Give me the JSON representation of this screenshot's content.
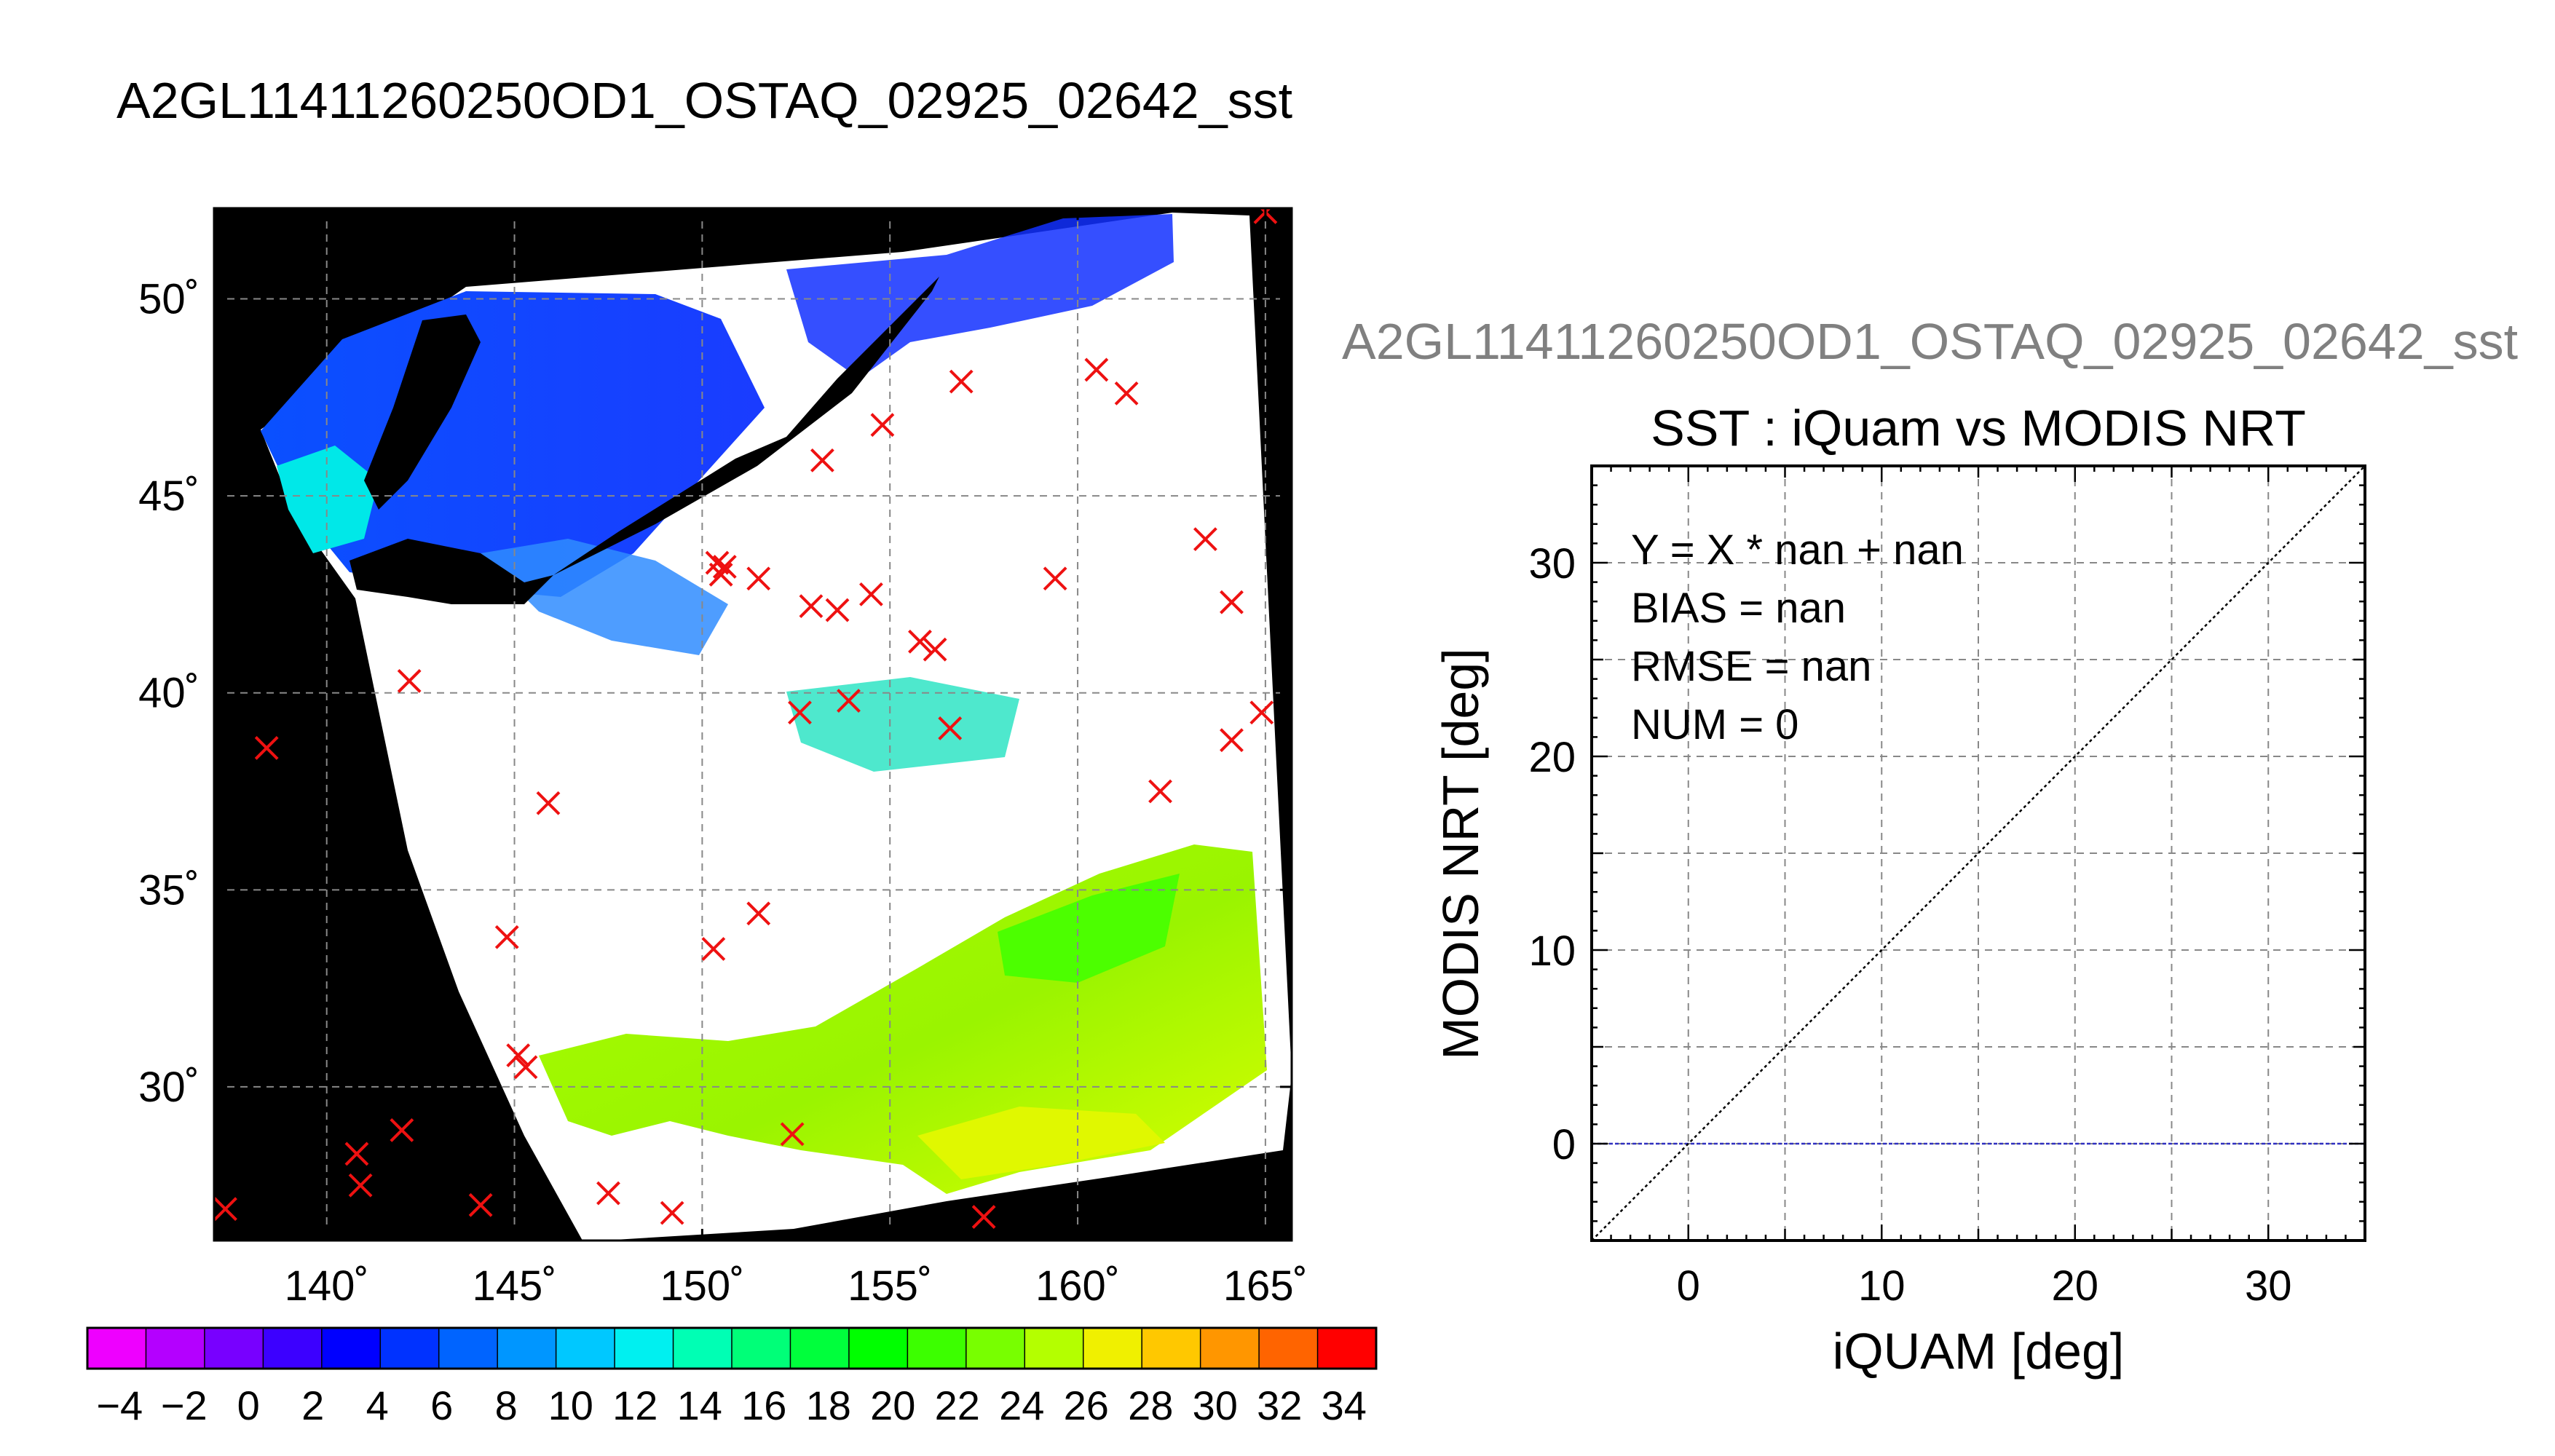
{
  "title": "A2GL11411260250OD1_OSTAQ_02925_02642_sst",
  "map": {
    "lon_ticks": [
      140,
      145,
      150,
      155,
      160,
      165
    ],
    "lat_ticks": [
      50,
      45,
      40,
      35,
      30
    ],
    "lon_labels": [
      "140˚",
      "145˚",
      "150˚",
      "155˚",
      "160˚",
      "165˚"
    ],
    "lat_labels": [
      "50˚",
      "45˚",
      "40˚",
      "35˚",
      "30˚"
    ],
    "lon_range": [
      137,
      165.7
    ],
    "lat_range": [
      26.1,
      52.3
    ],
    "marker_color": "#ee1111",
    "background_color": "#000000",
    "cloud_color": "#ffffff",
    "markers": [
      {
        "lon": 137.3,
        "lat": 26.9
      },
      {
        "lon": 138.4,
        "lat": 38.6
      },
      {
        "lon": 140.8,
        "lat": 28.3
      },
      {
        "lon": 140.9,
        "lat": 27.5
      },
      {
        "lon": 142.0,
        "lat": 28.9
      },
      {
        "lon": 142.2,
        "lat": 40.3
      },
      {
        "lon": 144.1,
        "lat": 27.0
      },
      {
        "lon": 144.8,
        "lat": 33.8
      },
      {
        "lon": 145.1,
        "lat": 30.8
      },
      {
        "lon": 145.3,
        "lat": 30.5
      },
      {
        "lon": 145.9,
        "lat": 37.2
      },
      {
        "lon": 147.5,
        "lat": 27.3
      },
      {
        "lon": 149.2,
        "lat": 26.8
      },
      {
        "lon": 150.3,
        "lat": 33.5
      },
      {
        "lon": 150.4,
        "lat": 43.3
      },
      {
        "lon": 150.5,
        "lat": 43.0
      },
      {
        "lon": 150.6,
        "lat": 43.2
      },
      {
        "lon": 151.5,
        "lat": 34.4
      },
      {
        "lon": 151.5,
        "lat": 42.9
      },
      {
        "lon": 152.4,
        "lat": 28.8
      },
      {
        "lon": 152.6,
        "lat": 39.5
      },
      {
        "lon": 152.9,
        "lat": 42.2
      },
      {
        "lon": 153.2,
        "lat": 45.9
      },
      {
        "lon": 153.6,
        "lat": 42.1
      },
      {
        "lon": 153.9,
        "lat": 39.8
      },
      {
        "lon": 154.5,
        "lat": 42.5
      },
      {
        "lon": 154.8,
        "lat": 46.8
      },
      {
        "lon": 155.8,
        "lat": 41.3
      },
      {
        "lon": 156.2,
        "lat": 41.1
      },
      {
        "lon": 156.6,
        "lat": 39.1
      },
      {
        "lon": 156.9,
        "lat": 47.9
      },
      {
        "lon": 157.5,
        "lat": 26.7
      },
      {
        "lon": 159.4,
        "lat": 42.9
      },
      {
        "lon": 160.5,
        "lat": 48.2
      },
      {
        "lon": 161.3,
        "lat": 47.6
      },
      {
        "lon": 162.2,
        "lat": 37.5
      },
      {
        "lon": 163.4,
        "lat": 43.9
      },
      {
        "lon": 164.1,
        "lat": 38.8
      },
      {
        "lon": 164.1,
        "lat": 42.3
      },
      {
        "lon": 164.9,
        "lat": 39.5
      },
      {
        "lon": 165.0,
        "lat": 52.2
      }
    ]
  },
  "colorbar": {
    "range": [
      -5,
      35
    ],
    "step": 2,
    "tick_labels": [
      "−4",
      "−2",
      "0",
      "2",
      "4",
      "6",
      "8",
      "10",
      "12",
      "14",
      "16",
      "18",
      "20",
      "22",
      "24",
      "26",
      "28",
      "30",
      "32",
      "34"
    ],
    "tick_values": [
      -4,
      -2,
      0,
      2,
      4,
      6,
      8,
      10,
      12,
      14,
      16,
      18,
      20,
      22,
      24,
      26,
      28,
      30,
      32,
      34
    ],
    "colors": [
      "#ee00ff",
      "#b400ff",
      "#7800ff",
      "#3c00ff",
      "#0000ff",
      "#0032ff",
      "#0064ff",
      "#0096ff",
      "#00c8ff",
      "#00f0f0",
      "#00ffb4",
      "#00ff78",
      "#00ff3c",
      "#00ff00",
      "#3cff00",
      "#78ff00",
      "#b4ff00",
      "#f0f000",
      "#ffc800",
      "#ff9600",
      "#ff6400",
      "#ff0000"
    ]
  },
  "scatter_title": "A2GL11411260250OD1_OSTAQ_02925_02642_sst",
  "chart_data": {
    "type": "scatter",
    "title": "SST : iQuam vs MODIS NRT",
    "xlabel": "iQUAM [deg]",
    "ylabel": "MODIS NRT [deg]",
    "xlim": [
      -5,
      35
    ],
    "ylim": [
      -5,
      35
    ],
    "major_ticks": [
      0,
      10,
      20,
      30
    ],
    "tick_labels": [
      "0",
      "10",
      "20",
      "30"
    ],
    "grid": true,
    "series": [],
    "reference_lines": {
      "one_to_one_color": "#000000",
      "zero_line_color": "#3030c0"
    },
    "annotations": [
      "Y = X * nan + nan",
      "BIAS = nan",
      "RMSE = nan",
      "NUM = 0"
    ]
  }
}
